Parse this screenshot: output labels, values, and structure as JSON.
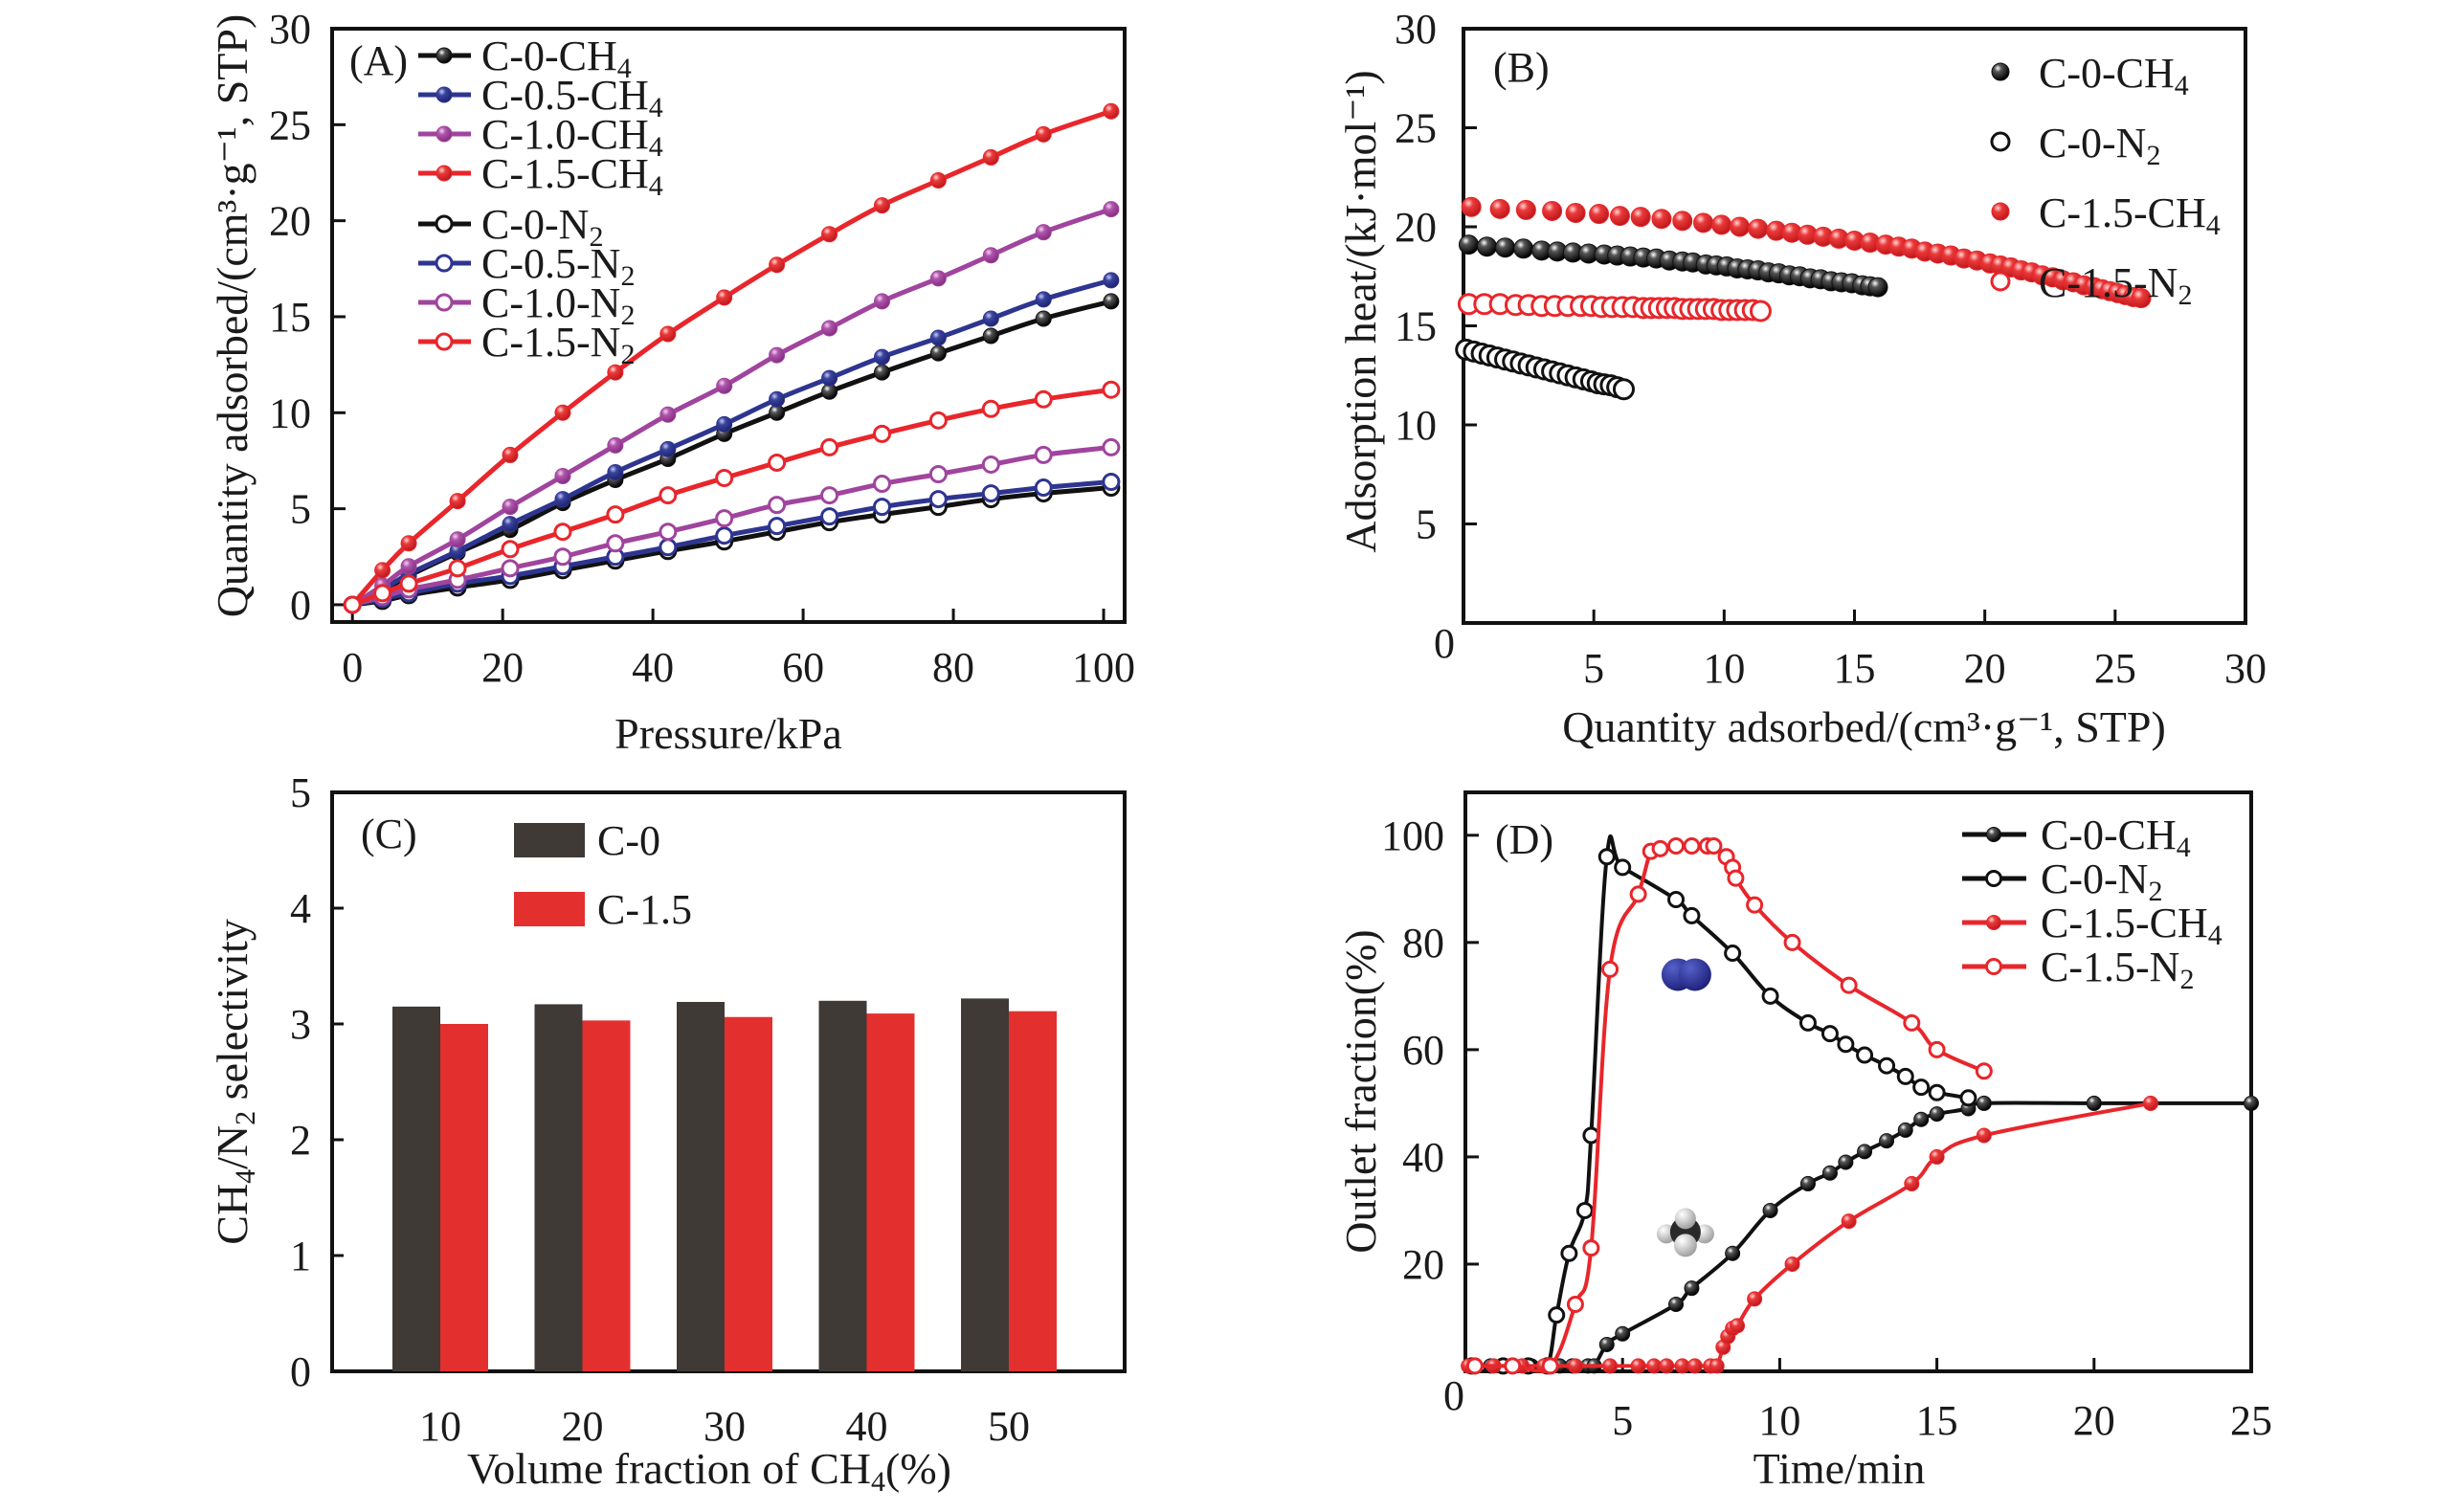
{
  "figure": {
    "panels": [
      "A",
      "B",
      "C",
      "D"
    ]
  },
  "chart_data": [
    {
      "id": "A",
      "type": "line",
      "panel_tag": "(A)",
      "xlabel": "Pressure/kPa",
      "ylabel": "Quantity adsorbed/(cm³·g⁻¹, STP)",
      "xlim": [
        -2.7,
        102.8
      ],
      "ylim": [
        -0.9,
        30
      ],
      "xticks": [
        0,
        20,
        40,
        60,
        80,
        100
      ],
      "yticks": [
        0,
        5,
        10,
        15,
        20,
        25,
        30
      ],
      "grid": false,
      "legend_position": "top-left",
      "x": [
        0,
        4,
        7.5,
        14,
        21,
        28,
        35,
        42,
        49.5,
        56.5,
        63.5,
        70.5,
        78,
        85,
        92,
        101
      ],
      "series": [
        {
          "name": "C-0-CH4",
          "label_main": "C-0-CH",
          "label_sub": "4",
          "color": "#111111",
          "marker": "filled",
          "values": [
            0,
            0.7,
            1.5,
            2.7,
            3.9,
            5.3,
            6.5,
            7.6,
            8.9,
            10.0,
            11.1,
            12.1,
            13.1,
            14.0,
            14.9,
            15.8
          ]
        },
        {
          "name": "C-0.5-CH4",
          "label_main": "C-0.5-CH",
          "label_sub": "4",
          "color": "#2e3590",
          "marker": "filled",
          "values": [
            0,
            0.8,
            1.6,
            2.8,
            4.2,
            5.5,
            6.9,
            8.1,
            9.4,
            10.7,
            11.8,
            12.9,
            13.9,
            14.9,
            15.9,
            16.9
          ]
        },
        {
          "name": "C-1.0-CH4",
          "label_main": "C-1.0-CH",
          "label_sub": "4",
          "color": "#a0449e",
          "marker": "filled",
          "values": [
            0,
            1.0,
            2.0,
            3.4,
            5.1,
            6.7,
            8.3,
            9.9,
            11.4,
            13.0,
            14.4,
            15.8,
            17.0,
            18.2,
            19.4,
            20.6
          ]
        },
        {
          "name": "C-1.5-CH4",
          "label_main": "C-1.5-CH",
          "label_sub": "4",
          "color": "#e8262b",
          "marker": "filled",
          "values": [
            0,
            1.8,
            3.2,
            5.4,
            7.8,
            10.0,
            12.1,
            14.1,
            16.0,
            17.7,
            19.3,
            20.8,
            22.1,
            23.3,
            24.5,
            25.7
          ]
        },
        {
          "name": "C-0-N2",
          "label_main": "C-0-N",
          "label_sub": "2",
          "color": "#111111",
          "marker": "open",
          "values": [
            0,
            0.2,
            0.5,
            0.9,
            1.3,
            1.8,
            2.3,
            2.8,
            3.3,
            3.8,
            4.3,
            4.7,
            5.1,
            5.5,
            5.8,
            6.1
          ]
        },
        {
          "name": "C-0.5-N2",
          "label_main": "C-0.5-N",
          "label_sub": "2",
          "color": "#2e3590",
          "marker": "open",
          "values": [
            0,
            0.3,
            0.6,
            1.1,
            1.5,
            2.0,
            2.5,
            3.0,
            3.6,
            4.1,
            4.6,
            5.1,
            5.5,
            5.8,
            6.1,
            6.4
          ]
        },
        {
          "name": "C-1.0-N2",
          "label_main": "C-1.0-N",
          "label_sub": "2",
          "color": "#a0449e",
          "marker": "open",
          "values": [
            0,
            0.4,
            0.8,
            1.3,
            1.9,
            2.5,
            3.2,
            3.8,
            4.5,
            5.2,
            5.7,
            6.3,
            6.8,
            7.3,
            7.8,
            8.2
          ]
        },
        {
          "name": "C-1.5-N2",
          "label_main": "C-1.5-N",
          "label_sub": "2",
          "color": "#e8262b",
          "marker": "open",
          "values": [
            0,
            0.6,
            1.1,
            1.9,
            2.9,
            3.8,
            4.7,
            5.7,
            6.6,
            7.4,
            8.2,
            8.9,
            9.6,
            10.2,
            10.7,
            11.2
          ]
        }
      ]
    },
    {
      "id": "B",
      "type": "scatter",
      "panel_tag": "(B)",
      "xlabel": "Quantity adsorbed/(cm³·g⁻¹, STP)",
      "ylabel": "Adsorption heat/(kJ·mol⁻¹)",
      "xlim": [
        0,
        30
      ],
      "ylim": [
        0,
        30
      ],
      "xticks": [
        5,
        10,
        15,
        20,
        25,
        30
      ],
      "yticks": [
        5,
        10,
        15,
        20,
        25,
        30
      ],
      "origin_label": "0",
      "grid": false,
      "legend_position": "top-right",
      "series": [
        {
          "name": "C-0-CH4",
          "label_main": "C-0-CH",
          "label_sub": "4",
          "color": "#111111",
          "marker": "filled",
          "x": [
            0.2,
            0.9,
            1.6,
            2.3,
            3.0,
            3.6,
            4.2,
            4.8,
            5.4,
            5.9,
            6.4,
            6.9,
            7.4,
            7.9,
            8.4,
            8.8,
            9.3,
            9.7,
            10.1,
            10.5,
            10.9,
            11.3,
            11.7,
            12.1,
            12.5,
            12.9,
            13.3,
            13.7,
            14.1,
            14.5,
            14.9,
            15.3,
            15.6,
            15.9
          ],
          "y": [
            19.1,
            19.0,
            18.95,
            18.9,
            18.8,
            18.75,
            18.7,
            18.65,
            18.6,
            18.55,
            18.5,
            18.45,
            18.4,
            18.3,
            18.25,
            18.2,
            18.1,
            18.05,
            18.0,
            17.9,
            17.85,
            17.8,
            17.7,
            17.65,
            17.55,
            17.5,
            17.4,
            17.35,
            17.25,
            17.2,
            17.15,
            17.05,
            17.0,
            16.95
          ]
        },
        {
          "name": "C-0-N2",
          "label_main": "C-0-N",
          "label_sub": "2",
          "color": "#111111",
          "marker": "open",
          "x": [
            0.1,
            0.4,
            0.7,
            1.0,
            1.3,
            1.6,
            1.9,
            2.2,
            2.5,
            2.8,
            3.1,
            3.4,
            3.7,
            4.0,
            4.3,
            4.6,
            4.9,
            5.15,
            5.4,
            5.65,
            5.9,
            6.15
          ],
          "y": [
            13.8,
            13.7,
            13.6,
            13.5,
            13.4,
            13.3,
            13.2,
            13.1,
            13.0,
            12.9,
            12.8,
            12.7,
            12.6,
            12.5,
            12.4,
            12.3,
            12.2,
            12.1,
            12.05,
            12.0,
            11.9,
            11.8
          ]
        },
        {
          "name": "C-1.5-CH4",
          "label_main": "C-1.5-CH",
          "label_sub": "4",
          "color": "#e8262b",
          "marker": "filled",
          "x": [
            0.3,
            1.4,
            2.4,
            3.4,
            4.3,
            5.2,
            6.0,
            6.8,
            7.6,
            8.4,
            9.2,
            9.9,
            10.6,
            11.3,
            12.0,
            12.6,
            13.2,
            13.8,
            14.4,
            15.0,
            15.6,
            16.2,
            16.7,
            17.2,
            17.7,
            18.2,
            18.7,
            19.2,
            19.7,
            20.2,
            20.6,
            21.0,
            21.4,
            21.8,
            22.2,
            22.6,
            23.0,
            23.4,
            23.8,
            24.2,
            24.5,
            24.8,
            25.1,
            25.4,
            25.7,
            26.0
          ],
          "y": [
            21.0,
            20.9,
            20.85,
            20.8,
            20.7,
            20.65,
            20.55,
            20.5,
            20.4,
            20.3,
            20.2,
            20.1,
            20.0,
            19.9,
            19.8,
            19.7,
            19.6,
            19.5,
            19.4,
            19.3,
            19.2,
            19.1,
            19.0,
            18.9,
            18.75,
            18.65,
            18.55,
            18.4,
            18.3,
            18.15,
            18.05,
            17.95,
            17.8,
            17.7,
            17.55,
            17.45,
            17.3,
            17.2,
            17.05,
            16.95,
            16.85,
            16.75,
            16.65,
            16.55,
            16.45,
            16.4
          ]
        },
        {
          "name": "C-1.5-N2",
          "label_main": "C-1.5-N",
          "label_sub": "2",
          "color": "#e8262b",
          "marker": "open",
          "x": [
            0.2,
            0.8,
            1.4,
            2.0,
            2.5,
            3.0,
            3.5,
            4.0,
            4.5,
            4.9,
            5.3,
            5.7,
            6.1,
            6.5,
            6.9,
            7.2,
            7.5,
            7.8,
            8.1,
            8.4,
            8.7,
            9.0,
            9.3,
            9.6,
            9.9,
            10.2,
            10.5,
            10.8,
            11.1,
            11.4
          ],
          "y": [
            16.1,
            16.1,
            16.1,
            16.05,
            16.05,
            16.0,
            16.0,
            16.0,
            16.0,
            16.0,
            15.95,
            15.95,
            15.95,
            15.95,
            15.9,
            15.9,
            15.9,
            15.9,
            15.9,
            15.85,
            15.85,
            15.85,
            15.85,
            15.85,
            15.8,
            15.8,
            15.8,
            15.8,
            15.8,
            15.75
          ]
        }
      ]
    },
    {
      "id": "C",
      "type": "bar",
      "panel_tag": "(C)",
      "xlabel_main": "Volume fraction of CH",
      "xlabel_sub": "4",
      "xlabel_tail": "(%)",
      "ylabel_parts": [
        "CH",
        "4",
        "/N",
        "2",
        " selectivity"
      ],
      "categories": [
        "10",
        "20",
        "30",
        "40",
        "50"
      ],
      "ylim": [
        0,
        5
      ],
      "yticks": [
        0,
        1,
        2,
        3,
        4,
        5
      ],
      "grid": false,
      "legend_position": "top-left",
      "series": [
        {
          "name": "C-0",
          "color": "#3f3a36",
          "values": [
            3.15,
            3.17,
            3.19,
            3.2,
            3.22
          ]
        },
        {
          "name": "C-1.5",
          "color": "#e3302f",
          "values": [
            3.0,
            3.03,
            3.06,
            3.09,
            3.11
          ]
        }
      ]
    },
    {
      "id": "D",
      "type": "line",
      "panel_tag": "(D)",
      "xlabel": "Time/min",
      "ylabel": "Outlet fraction(%)",
      "xlim": [
        0,
        25
      ],
      "ylim": [
        0,
        108
      ],
      "xticks": [
        5,
        10,
        15,
        20,
        25
      ],
      "yticks": [
        20,
        40,
        60,
        80,
        100
      ],
      "origin_label": "0",
      "grid": false,
      "legend_position": "top-right",
      "annotations": [
        {
          "name": "n2-molecule",
          "x": 7.0,
          "y": 74
        },
        {
          "name": "ch4-molecule",
          "x": 7.0,
          "y": 26
        }
      ],
      "series": [
        {
          "name": "C-0-CH4",
          "label_main": "C-0-CH",
          "label_sub": "4",
          "color": "#111111",
          "marker": "filled",
          "x": [
            0.1,
            0.8,
            1.5,
            2.1,
            2.6,
            3.0,
            3.4,
            3.9,
            4.1,
            4.5,
            5.0,
            6.7,
            7.2,
            8.5,
            9.7,
            10.9,
            11.6,
            12.1,
            12.7,
            13.4,
            14.0,
            14.5,
            15.0,
            16.0,
            16.5,
            20.0,
            25.0
          ],
          "y": [
            1,
            1,
            1,
            1,
            1,
            1,
            1,
            1,
            1,
            5,
            7,
            12.5,
            15.5,
            22,
            30,
            35,
            37,
            39,
            41,
            43,
            45,
            47,
            48,
            49,
            50,
            50,
            50
          ]
        },
        {
          "name": "C-0-N2",
          "label_main": "C-0-N",
          "label_sub": "2",
          "color": "#111111",
          "marker": "open",
          "x": [
            0.2,
            1.2,
            2.0,
            2.6,
            2.9,
            3.3,
            3.8,
            4.0,
            4.5,
            5.0,
            6.7,
            7.2,
            8.5,
            9.7,
            10.9,
            11.6,
            12.1,
            12.7,
            13.4,
            14.0,
            14.5,
            15.0,
            16.0
          ],
          "y": [
            1,
            1,
            1,
            1,
            10.5,
            22,
            30,
            44,
            96,
            94,
            88,
            85,
            78,
            70,
            65,
            63,
            61,
            59,
            57,
            55,
            53,
            52,
            51
          ]
        },
        {
          "name": "C-1.5-CH4",
          "label_main": "C-1.5-CH",
          "label_sub": "4",
          "color": "#e8262b",
          "marker": "filled",
          "x": [
            0.1,
            0.9,
            1.8,
            2.5,
            3.5,
            4.6,
            5.5,
            6.0,
            6.4,
            6.9,
            7.3,
            7.8,
            8.0,
            8.2,
            8.35,
            8.5,
            8.65,
            9.2,
            10.4,
            12.2,
            14.2,
            15.0,
            16.5,
            21.8
          ],
          "y": [
            1,
            1,
            1,
            1,
            1,
            1,
            1,
            1,
            1,
            1,
            1,
            1,
            1,
            4.5,
            6.5,
            8,
            8.5,
            13.5,
            20,
            28,
            35,
            40,
            44,
            50
          ]
        },
        {
          "name": "C-1.5-N2",
          "label_main": "C-1.5-N",
          "label_sub": "2",
          "color": "#e8262b",
          "marker": "open",
          "x": [
            0.3,
            1.5,
            2.7,
            3.5,
            4.0,
            4.6,
            5.5,
            5.9,
            6.2,
            6.7,
            7.2,
            7.7,
            7.9,
            8.3,
            8.5,
            8.6,
            9.2,
            10.4,
            12.2,
            14.2,
            15.0,
            16.5
          ],
          "y": [
            1,
            1,
            1,
            12.5,
            23,
            75,
            89,
            97,
            97.5,
            98,
            98,
            98,
            98,
            96,
            94,
            92,
            87,
            80,
            72,
            65,
            60,
            56
          ]
        }
      ]
    }
  ]
}
